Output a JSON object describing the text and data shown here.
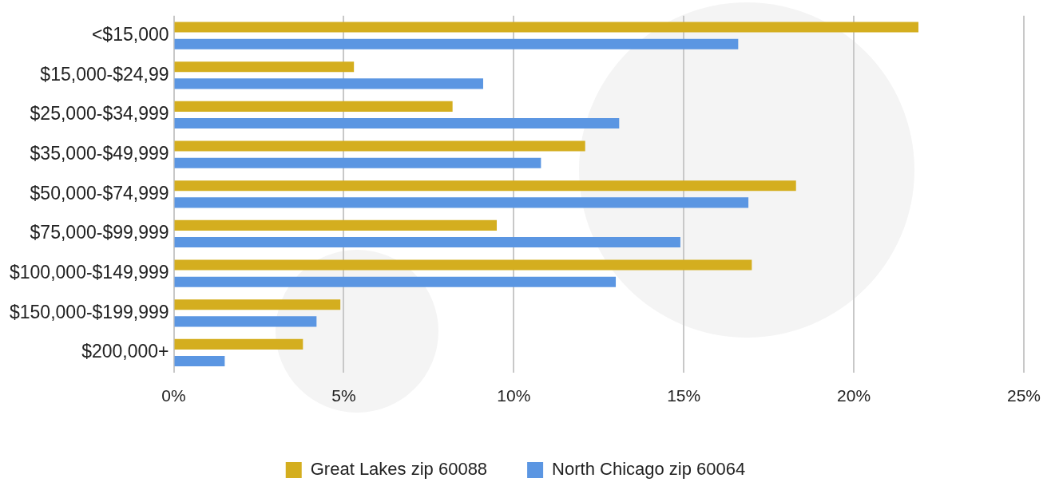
{
  "chart_data": {
    "type": "bar",
    "orientation": "horizontal",
    "categories": [
      "<$15,000",
      "$15,000-$24,99",
      "$25,000-$34,999",
      "$35,000-$49,999",
      "$50,000-$74,999",
      "$75,000-$99,999",
      "$100,000-$149,999",
      "$150,000-$199,999",
      "$200,000+"
    ],
    "series": [
      {
        "name": "Great Lakes zip 60088",
        "color": "#d4ae1f",
        "values": [
          21.9,
          5.3,
          8.2,
          12.1,
          18.3,
          9.5,
          17.0,
          4.9,
          3.8
        ]
      },
      {
        "name": "North Chicago zip 60064",
        "color": "#5b96e2",
        "values": [
          16.6,
          9.1,
          13.1,
          10.8,
          16.9,
          14.9,
          13.0,
          4.2,
          1.5
        ]
      }
    ],
    "xlim": [
      0,
      25
    ],
    "xticks": [
      {
        "value": 0,
        "label": "0%"
      },
      {
        "value": 5,
        "label": "5%"
      },
      {
        "value": 10,
        "label": "10%"
      },
      {
        "value": 15,
        "label": "15%"
      },
      {
        "value": 20,
        "label": "20%"
      },
      {
        "value": 25,
        "label": "25%"
      }
    ],
    "grid": "x",
    "legend": "bottom"
  }
}
